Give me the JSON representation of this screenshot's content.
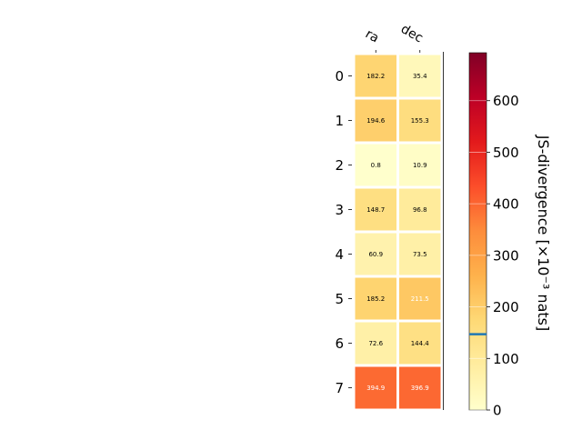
{
  "chart_data": {
    "type": "heatmap",
    "columns": [
      "ra",
      "dec"
    ],
    "rows": [
      "0",
      "1",
      "2",
      "3",
      "4",
      "5",
      "6",
      "7"
    ],
    "values": [
      [
        182.2,
        35.4
      ],
      [
        194.6,
        155.3
      ],
      [
        0.8,
        10.9
      ],
      [
        148.7,
        96.8
      ],
      [
        60.9,
        73.5
      ],
      [
        185.2,
        211.5
      ],
      [
        72.6,
        144.4
      ],
      [
        394.9,
        396.9
      ]
    ],
    "cell_labels": [
      [
        "182.2",
        "35.4"
      ],
      [
        "194.6",
        "155.3"
      ],
      [
        "0.8",
        "10.9"
      ],
      [
        "148.7",
        "96.8"
      ],
      [
        "60.9",
        "73.5"
      ],
      [
        "185.2",
        "211.5"
      ],
      [
        "72.6",
        "144.4"
      ],
      [
        "394.9",
        "396.9"
      ]
    ],
    "colorbar": {
      "label": "JS-divergence [×10⁻³ nats]",
      "range": [
        0,
        693
      ],
      "ticks": [
        0,
        100,
        200,
        300,
        400,
        500,
        600
      ],
      "tick_labels": [
        "0",
        "100",
        "200",
        "300",
        "400",
        "500",
        "600"
      ],
      "colormap": "YlOrRd",
      "marker_value": 147
    },
    "colors": {
      "colormap_stops": [
        "#ffffcc",
        "#ffeda0",
        "#fed976",
        "#feb24c",
        "#fd8d3c",
        "#fc4e2a",
        "#e31a1c",
        "#bd0026",
        "#800026"
      ],
      "marker": "#1f77b4",
      "cell_border": "#ffffff",
      "dark_text": "#000000",
      "light_text": "#ffffff"
    }
  }
}
